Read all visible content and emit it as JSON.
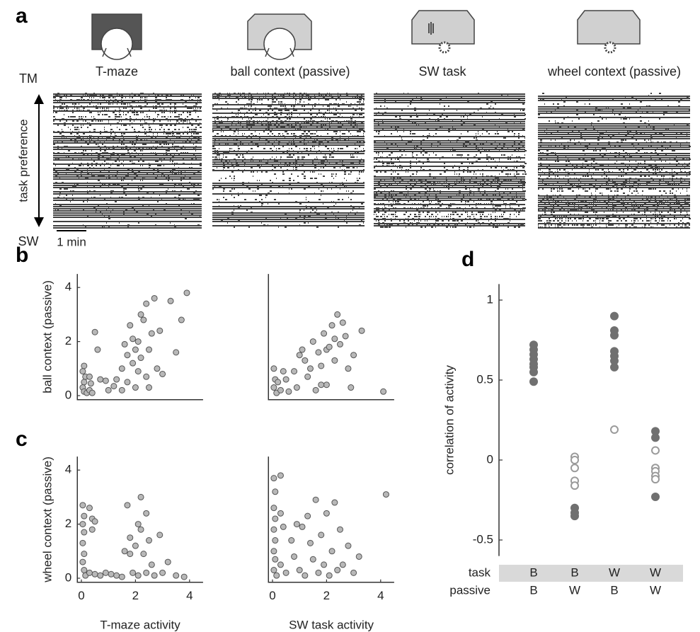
{
  "panel_labels": [
    "a",
    "b",
    "c",
    "d"
  ],
  "panel_a": {
    "columns": [
      {
        "title": "T-maze",
        "color": "#f26b3a"
      },
      {
        "title": "ball context (passive)",
        "color": "#c0806a"
      },
      {
        "title": "SW task",
        "color": "#1b6f80"
      },
      {
        "title": "wheel context (passive)",
        "color": "#7aa6b0"
      }
    ],
    "top_label": "TM",
    "top_color": "#f26b3a",
    "bottom_label": "SW",
    "bottom_color": "#1b6f80",
    "axis_label": "task preference",
    "scale_bar": "1 min"
  },
  "chart_data": [
    {
      "type": "scatter",
      "color": "#b8b8b8",
      "x": [
        0.1,
        0.05,
        0.15,
        0.1,
        0.05,
        0.1,
        0.2,
        0.3,
        0.4,
        0.3,
        0.35,
        0.5,
        0.6,
        0.7,
        0.9,
        1.0,
        1.3,
        1.5,
        1.5,
        1.6,
        1.7,
        1.7,
        1.8,
        1.9,
        1.9,
        2.0,
        2.0,
        2.1,
        2.1,
        2.2,
        2.2,
        2.3,
        2.4,
        2.4,
        2.5,
        2.6,
        2.7,
        2.8,
        2.9,
        3.0,
        3.3,
        3.5,
        3.7,
        3.9,
        2.5,
        1.2
      ],
      "y": [
        1.1,
        0.9,
        0.7,
        0.5,
        0.3,
        0.15,
        0.1,
        0.2,
        0.1,
        0.7,
        0.45,
        2.35,
        1.7,
        0.6,
        0.55,
        0.2,
        0.6,
        0.2,
        1.0,
        1.9,
        1.5,
        0.5,
        2.6,
        1.2,
        2.1,
        1.7,
        0.3,
        2.0,
        0.9,
        3.0,
        1.4,
        2.8,
        3.4,
        0.7,
        1.7,
        2.3,
        3.6,
        1.0,
        2.4,
        0.8,
        3.5,
        1.6,
        2.8,
        3.8,
        0.3,
        0.35
      ],
      "xlim": [
        -0.15,
        4.5
      ],
      "ylim": [
        -0.15,
        4.5
      ],
      "yticks": [
        0,
        2,
        4
      ],
      "ylabel": "ball context (passive)",
      "ylabel_color": "#c0806a"
    },
    {
      "type": "scatter",
      "color": "#b8b8b8",
      "x": [
        0.05,
        0.1,
        0.05,
        0.15,
        0.2,
        0.3,
        0.4,
        0.5,
        0.6,
        0.8,
        0.9,
        1.0,
        1.1,
        1.2,
        1.3,
        1.4,
        1.5,
        1.6,
        1.7,
        1.8,
        1.9,
        2.0,
        2.0,
        2.1,
        2.2,
        2.3,
        2.3,
        2.4,
        2.5,
        2.6,
        2.7,
        2.8,
        2.9,
        3.0,
        3.3,
        4.1,
        1.8
      ],
      "y": [
        1.0,
        0.6,
        0.3,
        0.1,
        0.5,
        0.2,
        0.9,
        0.6,
        0.15,
        0.9,
        0.3,
        1.5,
        1.7,
        1.3,
        0.7,
        1.0,
        2.0,
        0.2,
        1.6,
        1.1,
        2.3,
        1.7,
        0.4,
        1.8,
        2.6,
        2.1,
        1.3,
        3.0,
        1.9,
        2.7,
        2.2,
        1.0,
        0.3,
        1.5,
        2.4,
        0.15,
        0.4
      ],
      "xlim": [
        -0.15,
        4.5
      ],
      "ylim": [
        -0.15,
        4.5
      ]
    },
    {
      "type": "scatter",
      "color": "#b8b8b8",
      "x": [
        0.05,
        0.1,
        0.05,
        0.1,
        0.05,
        0.1,
        0.05,
        0.1,
        0.15,
        0.3,
        0.4,
        0.5,
        0.4,
        0.3,
        0.5,
        0.7,
        0.9,
        1.1,
        1.3,
        1.5,
        1.6,
        1.7,
        1.8,
        1.8,
        1.9,
        2.0,
        2.1,
        2.1,
        2.2,
        2.2,
        2.3,
        2.4,
        2.4,
        2.5,
        2.6,
        2.7,
        2.9,
        3.0,
        3.2,
        3.5,
        3.8
      ],
      "y": [
        2.7,
        2.3,
        2.0,
        1.7,
        1.3,
        0.9,
        0.6,
        0.3,
        0.1,
        2.6,
        2.2,
        2.1,
        1.8,
        0.2,
        0.15,
        0.1,
        0.2,
        0.15,
        0.1,
        0.05,
        1.0,
        2.7,
        1.5,
        0.9,
        0.2,
        1.2,
        2.0,
        0.1,
        1.8,
        3.0,
        0.9,
        2.4,
        0.2,
        1.4,
        0.5,
        0.1,
        1.6,
        0.2,
        0.6,
        0.1,
        0.05
      ],
      "xlim": [
        -0.15,
        4.5
      ],
      "ylim": [
        -0.15,
        4.5
      ],
      "xticks": [
        0,
        2,
        4
      ],
      "yticks": [
        0,
        2,
        4
      ],
      "xlabel": "T-maze activity",
      "xlabel_color": "#f26b3a",
      "ylabel": "wheel context (passive)",
      "ylabel_color": "#7aa6b0"
    },
    {
      "type": "scatter",
      "color": "#b8b8b8",
      "x": [
        0.05,
        0.1,
        0.05,
        0.1,
        0.05,
        0.1,
        0.05,
        0.1,
        0.05,
        0.15,
        0.3,
        0.3,
        0.4,
        0.3,
        0.5,
        0.7,
        0.8,
        0.9,
        1.0,
        1.1,
        1.2,
        1.3,
        1.4,
        1.5,
        1.6,
        1.7,
        1.8,
        1.9,
        2.0,
        2.1,
        2.2,
        2.3,
        2.4,
        2.5,
        2.6,
        2.8,
        3.0,
        3.2,
        4.2
      ],
      "y": [
        3.7,
        3.2,
        2.6,
        2.2,
        1.8,
        1.4,
        1.0,
        0.7,
        0.3,
        0.1,
        3.8,
        2.4,
        1.9,
        0.5,
        0.2,
        1.4,
        0.8,
        2.0,
        0.3,
        1.9,
        0.1,
        2.3,
        1.3,
        0.7,
        2.9,
        0.2,
        1.6,
        0.5,
        2.4,
        0.1,
        1.0,
        2.8,
        0.3,
        1.8,
        0.5,
        1.2,
        0.2,
        0.8,
        3.1
      ],
      "xlim": [
        -0.15,
        4.5
      ],
      "ylim": [
        -0.15,
        4.5
      ],
      "xticks": [
        0,
        2,
        4
      ],
      "xlabel": "SW task activity",
      "xlabel_color": "#1b6f80"
    },
    {
      "type": "strip",
      "ylabel": "correlation of activity",
      "ylim": [
        -0.6,
        1.1
      ],
      "yticks": [
        -0.5,
        0,
        0.5,
        1
      ],
      "row_labels": [
        "task",
        "passive"
      ],
      "task": [
        "B",
        "B",
        "W",
        "W"
      ],
      "passive": [
        "B",
        "W",
        "B",
        "W"
      ],
      "values": [
        [
          0.72,
          0.69,
          0.66,
          0.63,
          0.6,
          0.58,
          0.55,
          0.49
        ],
        [
          0.02,
          0.0,
          -0.05,
          -0.13,
          -0.16,
          -0.3,
          -0.33,
          -0.35
        ],
        [
          0.9,
          0.81,
          0.78,
          0.68,
          0.65,
          0.62,
          0.58,
          0.19
        ],
        [
          0.18,
          0.14,
          0.06,
          -0.05,
          -0.07,
          -0.1,
          -0.12,
          -0.23
        ]
      ],
      "filled": [
        [
          true,
          true,
          true,
          true,
          true,
          true,
          true,
          true
        ],
        [
          false,
          false,
          false,
          false,
          false,
          true,
          true,
          true
        ],
        [
          true,
          true,
          true,
          true,
          true,
          true,
          true,
          false
        ],
        [
          true,
          true,
          false,
          false,
          false,
          false,
          false,
          true
        ]
      ],
      "color": "#707070",
      "open_color": "#9a9a9a"
    }
  ]
}
